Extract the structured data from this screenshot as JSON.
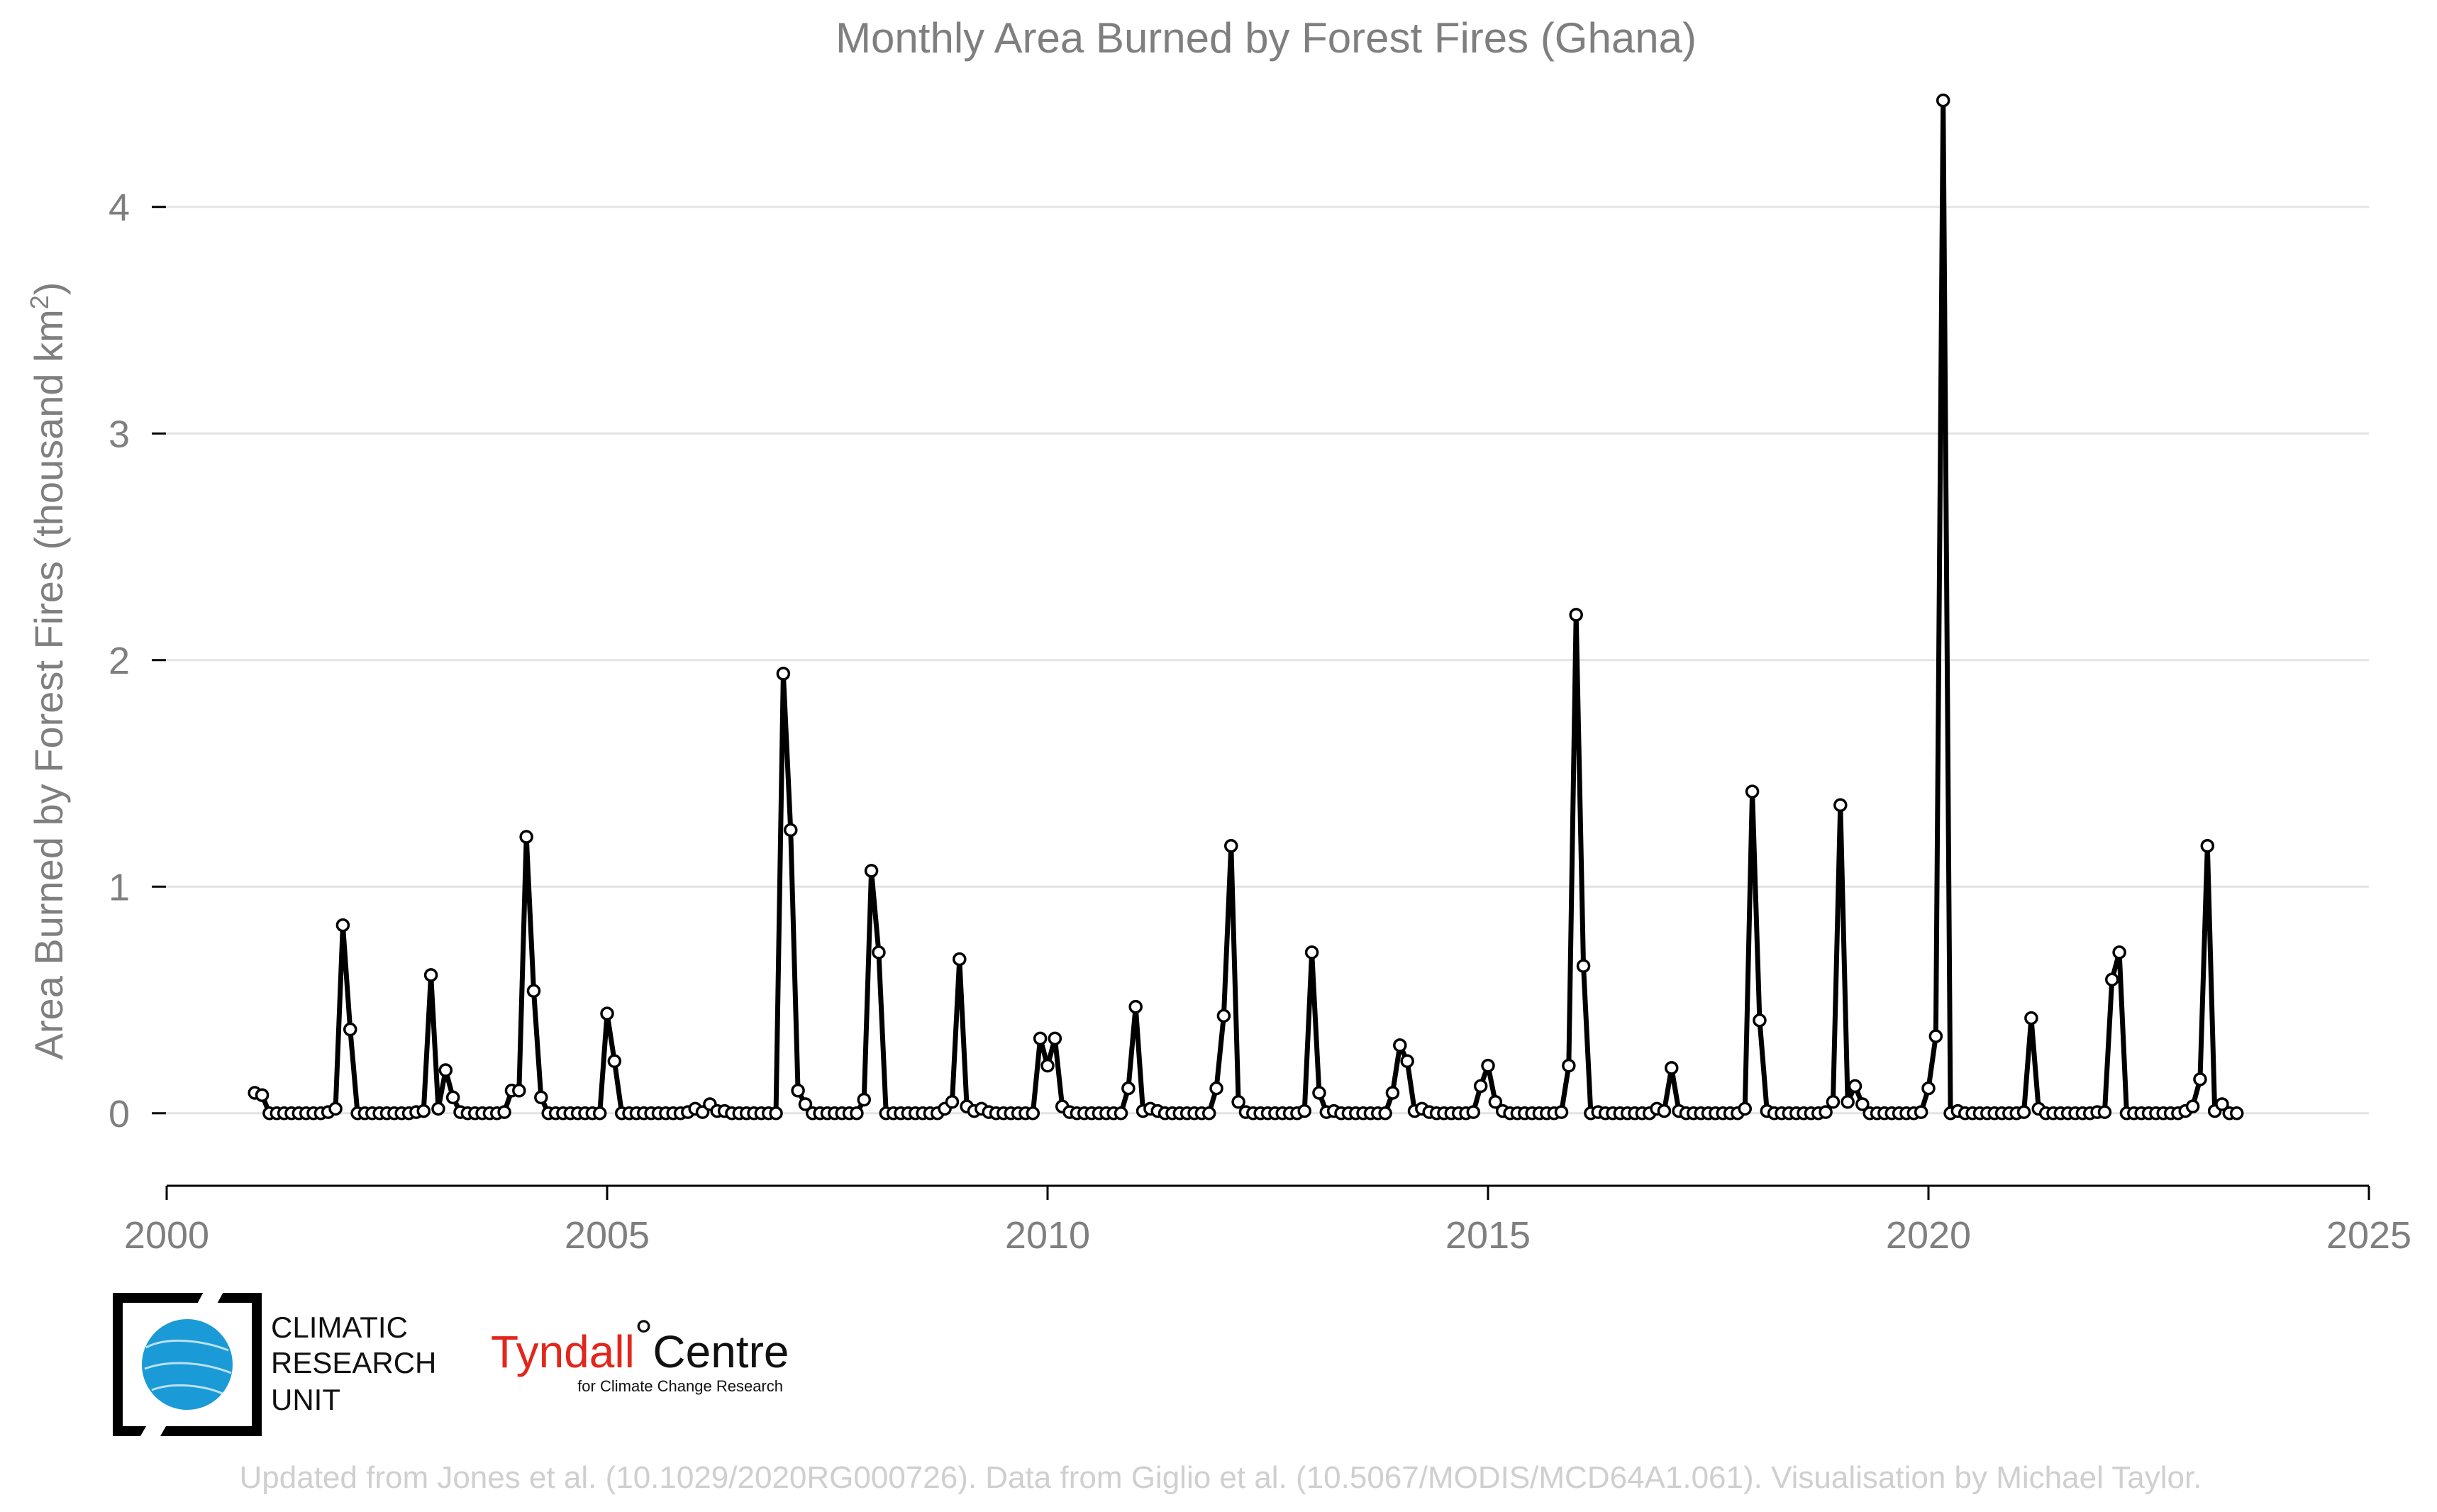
{
  "chart_data": {
    "type": "line",
    "title": "Monthly Area Burned by Forest Fires (Ghana)",
    "ylabel_main": "Area Burned by Forest Fires (thousand km",
    "ylabel_sup": "2",
    "ylabel_close": ")",
    "xlim": [
      2000,
      2025
    ],
    "ylim": [
      -0.32,
      4.5
    ],
    "x_ticks": [
      2000,
      2005,
      2010,
      2015,
      2020,
      2025
    ],
    "x_tick_labels": [
      "2000",
      "2005",
      "2010",
      "2015",
      "2020",
      "2025"
    ],
    "y_ticks": [
      0,
      1,
      2,
      3,
      4
    ],
    "y_tick_labels": [
      "0",
      "1",
      "2",
      "3",
      "4"
    ],
    "grid": "horizontal",
    "x_start": "2001-01",
    "x_end": "2023-05",
    "x_step": "monthly",
    "series": [
      {
        "line_color": "#000000",
        "marker_fill": "#ffffff",
        "values": [
          0.09,
          0.08,
          0,
          0,
          0,
          0,
          0,
          0,
          0,
          0,
          0.005,
          0.02,
          0.83,
          0.37,
          0,
          0,
          0,
          0,
          0,
          0,
          0,
          0,
          0.005,
          0.01,
          0.61,
          0.02,
          0.19,
          0.07,
          0.005,
          0,
          0,
          0,
          0,
          0,
          0.005,
          0.1,
          0.1,
          1.22,
          0.54,
          0.07,
          0,
          0,
          0,
          0,
          0,
          0,
          0,
          0,
          0.44,
          0.23,
          0,
          0,
          0,
          0,
          0,
          0,
          0,
          0,
          0,
          0.005,
          0.02,
          0.005,
          0.04,
          0.01,
          0.01,
          0,
          0,
          0,
          0,
          0,
          0,
          0,
          1.94,
          1.25,
          0.1,
          0.04,
          0,
          0,
          0,
          0,
          0,
          0,
          0,
          0.06,
          1.07,
          0.71,
          0,
          0,
          0,
          0,
          0,
          0,
          0,
          0,
          0.02,
          0.05,
          0.68,
          0.03,
          0.01,
          0.02,
          0.005,
          0,
          0,
          0,
          0,
          0,
          0,
          0.33,
          0.21,
          0.33,
          0.03,
          0.005,
          0,
          0,
          0,
          0,
          0,
          0,
          0,
          0.11,
          0.47,
          0.01,
          0.02,
          0.01,
          0,
          0,
          0,
          0,
          0,
          0,
          0,
          0.11,
          0.43,
          1.18,
          0.05,
          0.005,
          0,
          0,
          0,
          0,
          0,
          0,
          0,
          0.01,
          0.71,
          0.09,
          0.005,
          0.01,
          0,
          0,
          0,
          0,
          0,
          0,
          0,
          0.09,
          0.3,
          0.23,
          0.01,
          0.02,
          0.005,
          0,
          0,
          0,
          0,
          0,
          0.005,
          0.12,
          0.21,
          0.05,
          0.01,
          0,
          0,
          0,
          0,
          0,
          0,
          0,
          0.005,
          0.21,
          2.2,
          0.65,
          0,
          0.005,
          0,
          0,
          0,
          0,
          0,
          0,
          0,
          0.02,
          0.01,
          0.2,
          0.01,
          0,
          0,
          0,
          0,
          0,
          0,
          0,
          0,
          0.02,
          1.42,
          0.41,
          0.01,
          0,
          0,
          0,
          0,
          0,
          0,
          0,
          0.005,
          0.05,
          1.36,
          0.05,
          0.12,
          0.04,
          0,
          0,
          0,
          0,
          0,
          0,
          0,
          0.005,
          0.11,
          0.34,
          4.47,
          0,
          0.01,
          0,
          0,
          0,
          0,
          0,
          0,
          0,
          0,
          0.005,
          0.42,
          0.02,
          0,
          0,
          0,
          0,
          0,
          0,
          0,
          0.005,
          0.005,
          0.59,
          0.71,
          0,
          0,
          0,
          0,
          0,
          0,
          0,
          0,
          0.01,
          0.03,
          0.15,
          1.18,
          0.01,
          0.04,
          0,
          0
        ]
      }
    ]
  },
  "logos": {
    "cru_lines": [
      "CLIMATIC",
      "RESEARCH",
      "UNIT"
    ],
    "tyndall_red": "Tyndall",
    "tyndall_degree": "°",
    "tyndall_black": "Centre",
    "tyndall_sub": "for Climate Change Research"
  },
  "footer": "Updated from Jones et al. (10.1029/2020RG000726). Data from Giglio et al. (10.5067/MODIS/MCD64A1.061). Visualisation by Michael Taylor.",
  "colors": {
    "text_gray": "#7f7f7f",
    "grid": "#e4e4e4",
    "cru_blue": "#1a9ad6",
    "tyndall_red": "#e2261b",
    "footer_gray": "#cfcfcf"
  }
}
